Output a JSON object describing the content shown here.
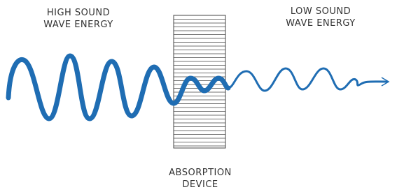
{
  "labels": {
    "high": [
      "HIGH SOUND",
      "WAVE ENERGY"
    ],
    "low": [
      "LOW SOUND",
      "WAVE ENERGY"
    ],
    "device": [
      "ABSORPTION",
      "DEVICE"
    ]
  }
}
